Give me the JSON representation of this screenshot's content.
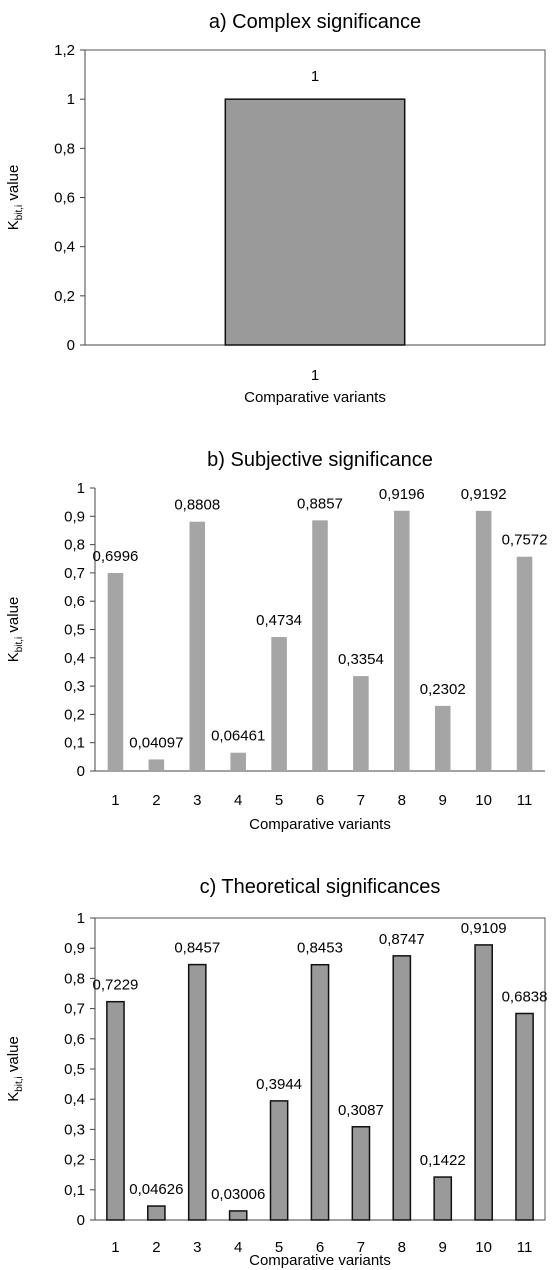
{
  "chart_data": [
    {
      "type": "bar",
      "title": "a) Complex significance",
      "xlabel": "Comparative variants",
      "ylabel_main": "K",
      "ylabel_sub": "bit,i",
      "ylabel_rest": " value",
      "categories": [
        "1"
      ],
      "values": [
        1
      ],
      "value_labels": [
        "1"
      ],
      "ylim": [
        0,
        1.2
      ],
      "yticks": [
        "0",
        "0,2",
        "0,4",
        "0,6",
        "0,8",
        "1",
        "1,2"
      ],
      "grid": false,
      "bar_color": "#9a9a9a",
      "bar_outline": true
    },
    {
      "type": "bar",
      "title": "b) Subjective significance",
      "xlabel": "Comparative variants",
      "ylabel_main": "K",
      "ylabel_sub": "bit,i",
      "ylabel_rest": " value",
      "categories": [
        "1",
        "2",
        "3",
        "4",
        "5",
        "6",
        "7",
        "8",
        "9",
        "10",
        "11"
      ],
      "values": [
        0.6996,
        0.04097,
        0.8808,
        0.06461,
        0.4734,
        0.8857,
        0.3354,
        0.9196,
        0.2302,
        0.9192,
        0.7572
      ],
      "value_labels": [
        "0,6996",
        "0,04097",
        "0,8808",
        "0,06461",
        "0,4734",
        "0,8857",
        "0,3354",
        "0,9196",
        "0,2302",
        "0,9192",
        "0,7572"
      ],
      "ylim": [
        0,
        1
      ],
      "yticks": [
        "0",
        "0,1",
        "0,2",
        "0,3",
        "0,4",
        "0,5",
        "0,6",
        "0,7",
        "0,8",
        "0,9",
        "1"
      ],
      "grid": false,
      "bar_color": "#a5a5a5",
      "bar_outline": false
    },
    {
      "type": "bar",
      "title": "c) Theoretical significances",
      "xlabel": "Comparative variants",
      "ylabel_main": "K",
      "ylabel_sub": "bit,i",
      "ylabel_rest": " value",
      "categories": [
        "1",
        "2",
        "3",
        "4",
        "5",
        "6",
        "7",
        "8",
        "9",
        "10",
        "11"
      ],
      "values": [
        0.7229,
        0.04626,
        0.8457,
        0.03006,
        0.3944,
        0.8453,
        0.3087,
        0.8747,
        0.1422,
        0.9109,
        0.6838
      ],
      "value_labels": [
        "0,7229",
        "0,04626",
        "0,8457",
        "0,03006",
        "0,3944",
        "0,8453",
        "0,3087",
        "0,8747",
        "0,1422",
        "0,9109",
        "0,6838"
      ],
      "ylim": [
        0,
        1
      ],
      "yticks": [
        "0",
        "0,1",
        "0,2",
        "0,3",
        "0,4",
        "0,5",
        "0,6",
        "0,7",
        "0,8",
        "0,9",
        "1"
      ],
      "grid": false,
      "bar_color": "#9a9a9a",
      "bar_outline": true
    }
  ]
}
